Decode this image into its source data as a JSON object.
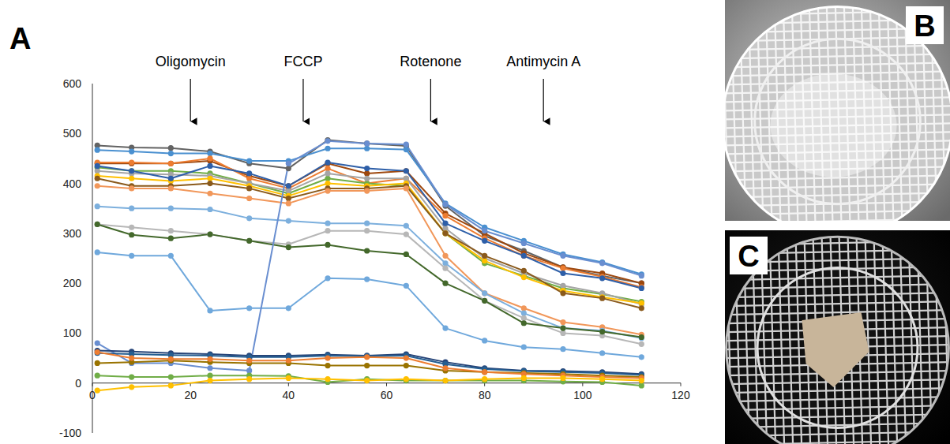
{
  "chart_data": {
    "type": "line",
    "panel_label": "A",
    "x": [
      1,
      8,
      16,
      24,
      32,
      40,
      48,
      56,
      64,
      72,
      80,
      88,
      96,
      104,
      112
    ],
    "xlim": [
      0,
      120
    ],
    "xticks": [
      0,
      20,
      40,
      60,
      80,
      100,
      120
    ],
    "ylim": [
      -100,
      600
    ],
    "yticks": [
      -100,
      0,
      100,
      200,
      300,
      400,
      500,
      600
    ],
    "grid": false,
    "marker": "circle",
    "annotations": [
      {
        "text": "Oligomycin",
        "x": 20
      },
      {
        "text": "FCCP",
        "x": 43
      },
      {
        "text": "Rotenone",
        "x": 69
      },
      {
        "text": "Antimycin A",
        "x": 92
      }
    ],
    "series": [
      {
        "color": "#636363",
        "values": [
          476,
          472,
          471,
          464,
          440,
          430,
          487,
          480,
          475,
          355,
          295,
          265,
          232,
          215,
          200
        ]
      },
      {
        "color": "#4a90d0",
        "values": [
          467,
          464,
          460,
          460,
          445,
          445,
          470,
          470,
          468,
          360,
          312,
          285,
          258,
          242,
          218
        ]
      },
      {
        "color": "#9e480e",
        "values": [
          440,
          440,
          440,
          445,
          415,
          395,
          440,
          420,
          425,
          340,
          300,
          260,
          232,
          220,
          200
        ]
      },
      {
        "color": "#ed7d31",
        "values": [
          442,
          442,
          440,
          450,
          410,
          390,
          430,
          400,
          410,
          335,
          290,
          255,
          230,
          213,
          192
        ]
      },
      {
        "color": "#70ad47",
        "values": [
          432,
          425,
          425,
          420,
          400,
          380,
          410,
          400,
          395,
          300,
          240,
          215,
          190,
          178,
          163
        ]
      },
      {
        "color": "#a5a5a5",
        "values": [
          425,
          420,
          418,
          415,
          400,
          385,
          420,
          410,
          410,
          310,
          250,
          220,
          195,
          180,
          158
        ]
      },
      {
        "color": "#ffc000",
        "values": [
          415,
          410,
          405,
          410,
          395,
          375,
          400,
          395,
          400,
          300,
          245,
          212,
          185,
          172,
          160
        ]
      },
      {
        "color": "#2e5fa8",
        "values": [
          435,
          425,
          410,
          435,
          420,
          395,
          442,
          430,
          425,
          320,
          285,
          255,
          220,
          210,
          190
        ]
      },
      {
        "color": "#8a5a1c",
        "values": [
          410,
          395,
          395,
          400,
          390,
          370,
          390,
          390,
          395,
          300,
          255,
          225,
          180,
          170,
          150
        ]
      },
      {
        "color": "#f1975a",
        "values": [
          395,
          390,
          390,
          380,
          370,
          360,
          385,
          385,
          390,
          255,
          180,
          150,
          122,
          112,
          97
        ]
      },
      {
        "color": "#7cafdd",
        "values": [
          354,
          350,
          350,
          348,
          330,
          325,
          320,
          320,
          315,
          240,
          180,
          140,
          110,
          105,
          90
        ]
      },
      {
        "color": "#b7b7b7",
        "values": [
          318,
          312,
          305,
          298,
          285,
          278,
          305,
          305,
          298,
          230,
          165,
          130,
          100,
          95,
          78
        ]
      },
      {
        "color": "#43682b",
        "values": [
          318,
          297,
          290,
          298,
          285,
          272,
          277,
          265,
          258,
          200,
          165,
          120,
          110,
          103,
          92
        ]
      },
      {
        "color": "#6fa8dc",
        "values": [
          262,
          255,
          255,
          145,
          150,
          150,
          210,
          208,
          195,
          110,
          85,
          72,
          68,
          60,
          52
        ]
      },
      {
        "color": "#698ed0",
        "values": [
          80,
          40,
          40,
          30,
          25,
          440,
          485,
          480,
          478,
          358,
          305,
          280,
          255,
          240,
          215
        ]
      },
      {
        "color": "#264478",
        "values": [
          65,
          63,
          60,
          58,
          55,
          55,
          57,
          55,
          58,
          42,
          30,
          25,
          24,
          22,
          18
        ]
      },
      {
        "color": "#255e91",
        "values": [
          60,
          58,
          56,
          55,
          52,
          52,
          55,
          54,
          55,
          38,
          28,
          24,
          22,
          20,
          16
        ]
      },
      {
        "color": "#997300",
        "values": [
          40,
          42,
          45,
          42,
          40,
          40,
          35,
          35,
          35,
          25,
          22,
          20,
          18,
          15,
          12
        ]
      },
      {
        "color": "#ed7d31",
        "values": [
          62,
          50,
          48,
          48,
          45,
          45,
          50,
          52,
          50,
          30,
          22,
          18,
          15,
          12,
          10
        ]
      },
      {
        "color": "#70ad47",
        "values": [
          15,
          12,
          12,
          15,
          15,
          14,
          2,
          8,
          5,
          5,
          5,
          5,
          3,
          2,
          -5
        ]
      },
      {
        "color": "#ffc000",
        "values": [
          -15,
          -8,
          -5,
          5,
          8,
          10,
          8,
          5,
          8,
          5,
          8,
          10,
          10,
          8,
          5
        ]
      }
    ]
  },
  "photos": [
    {
      "label": "B"
    },
    {
      "label": "C"
    }
  ]
}
